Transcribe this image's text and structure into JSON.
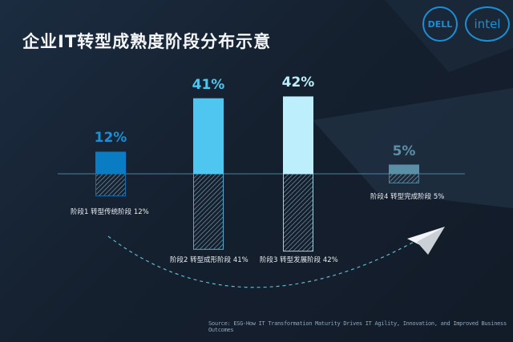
{
  "title": "企业IT转型成熟度阶段分布示意",
  "logos": {
    "dell": "DELL",
    "intel": "intel"
  },
  "source": "Source: ESG-How IT Transformation Maturity Drives IT Agility, Innovation, and Improved Business Outcomes",
  "chart_data": {
    "type": "bar",
    "title": "企业IT转型成熟度阶段分布示意",
    "categories": [
      "阶段1 转型传统阶段 12%",
      "阶段2 转型成形阶段 41%",
      "阶段3 转型发展阶段 42%",
      "阶段4 转型完成阶段  5%"
    ],
    "values": [
      12,
      41,
      42,
      5
    ],
    "value_labels": [
      "12%",
      "41%",
      "42%",
      "5%"
    ],
    "colors": [
      "#0a7cc4",
      "#4fc6ef",
      "#bdeefb",
      "#5a8fa5"
    ],
    "label_colors": [
      "#1a8fd6",
      "#4fc6ef",
      "#bdeefb",
      "#5a8fa5"
    ],
    "ylim": [
      0,
      45
    ],
    "grid": false,
    "legend": "none",
    "mirrored_hatched_reflection": true
  }
}
